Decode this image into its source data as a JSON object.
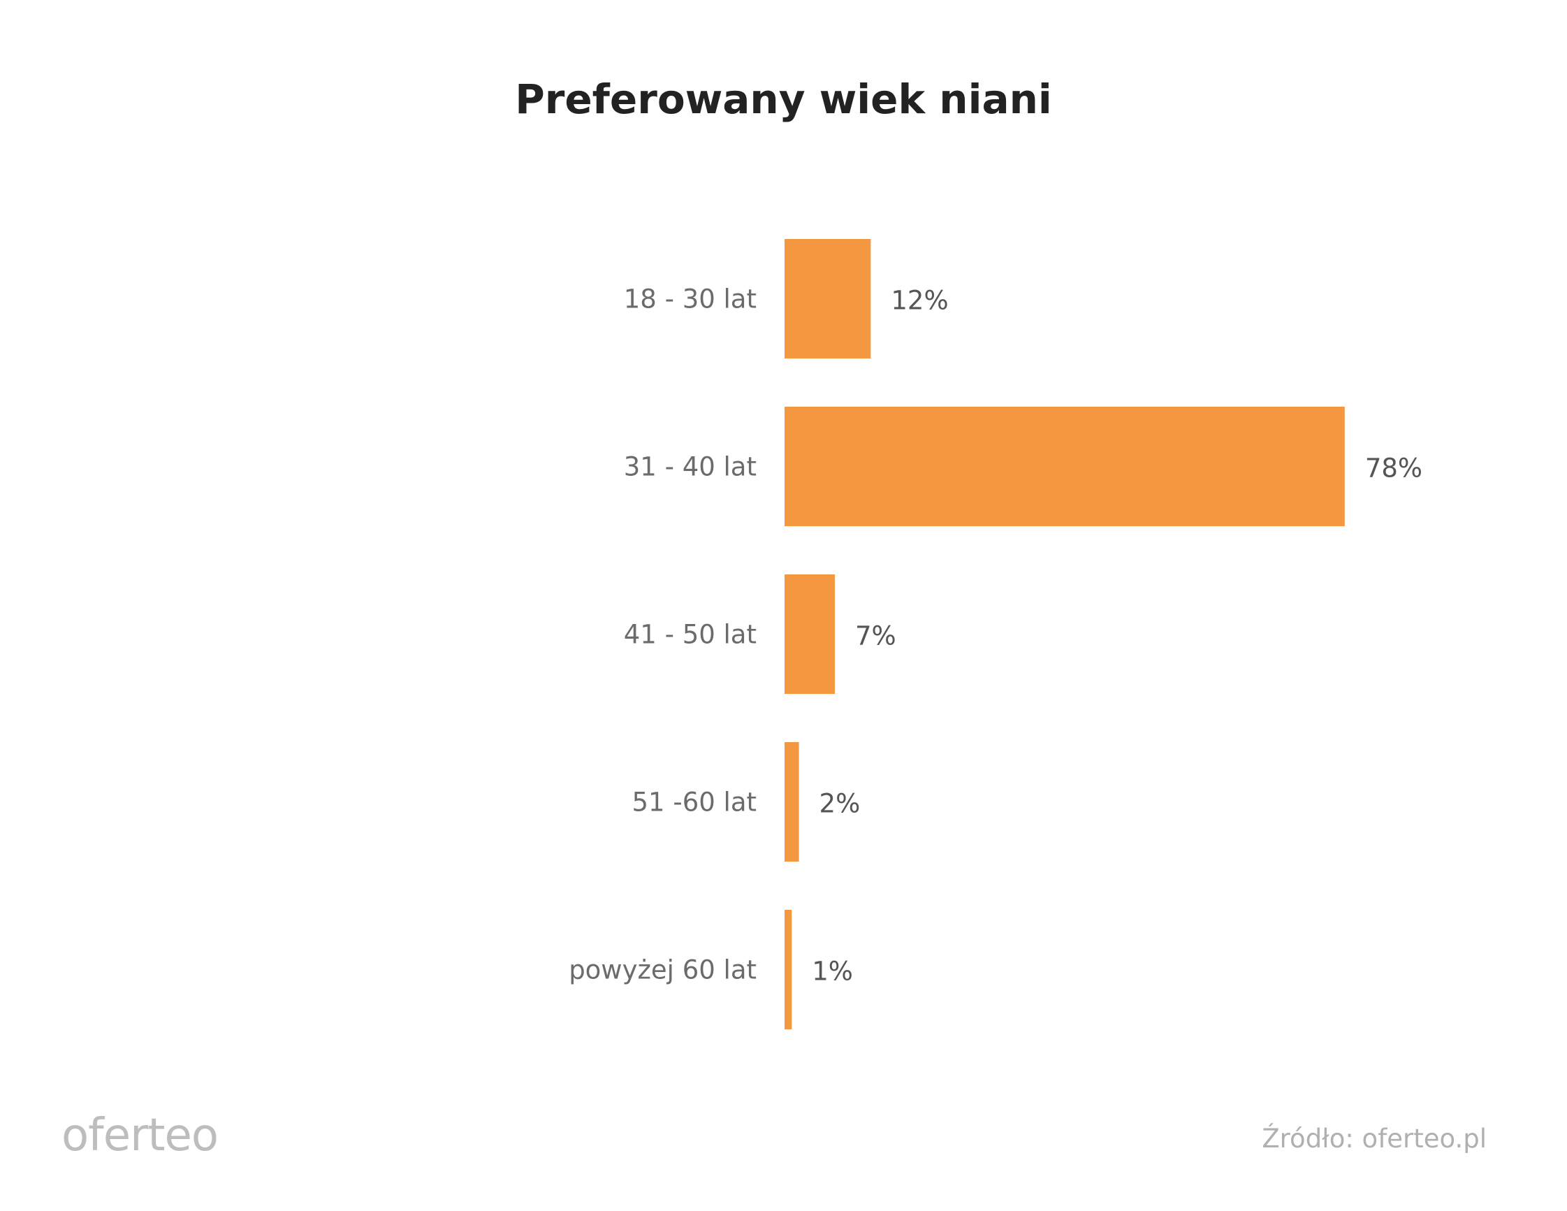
{
  "chart_data": {
    "type": "bar",
    "orientation": "horizontal",
    "title": "Preferowany wiek niani",
    "categories": [
      "18 - 30 lat",
      "31 - 40 lat",
      "41 - 50 lat",
      "51 -60 lat",
      "powyżej 60 lat"
    ],
    "values": [
      12,
      78,
      7,
      2,
      1
    ],
    "value_labels": [
      "12%",
      "78%",
      "7%",
      "2%",
      "1%"
    ],
    "unit": "%",
    "grid": false,
    "bar_color": "#f39741"
  },
  "footer": {
    "logo": "oferteo",
    "source": "Źródło: oferteo.pl"
  }
}
